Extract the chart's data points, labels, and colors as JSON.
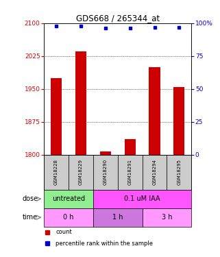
{
  "title": "GDS668 / 265344_at",
  "samples": [
    "GSM18228",
    "GSM18229",
    "GSM18290",
    "GSM18291",
    "GSM18294",
    "GSM18295"
  ],
  "bar_values": [
    1975,
    2035,
    1807,
    1835,
    2000,
    1955
  ],
  "dot_values": [
    98,
    98,
    96,
    96,
    97,
    97
  ],
  "ylim_left": [
    1800,
    2100
  ],
  "ylim_right": [
    0,
    100
  ],
  "yticks_left": [
    1800,
    1875,
    1950,
    2025,
    2100
  ],
  "yticks_right": [
    0,
    25,
    50,
    75,
    100
  ],
  "bar_color": "#cc0000",
  "dot_color": "#0000cc",
  "bar_width": 0.45,
  "dose_labels": [
    {
      "text": "untreated",
      "span": [
        0,
        2
      ],
      "color": "#90ee90"
    },
    {
      "text": "0.1 uM IAA",
      "span": [
        2,
        6
      ],
      "color": "#ff55ff"
    }
  ],
  "time_labels": [
    {
      "text": "0 h",
      "span": [
        0,
        2
      ],
      "color": "#ff99ff"
    },
    {
      "text": "1 h",
      "span": [
        2,
        4
      ],
      "color": "#cc77dd"
    },
    {
      "text": "3 h",
      "span": [
        4,
        6
      ],
      "color": "#ff99ff"
    }
  ],
  "dose_arrow_label": "dose",
  "time_arrow_label": "time",
  "legend_items": [
    {
      "label": "count",
      "color": "#cc0000"
    },
    {
      "label": "percentile rank within the sample",
      "color": "#0000cc"
    }
  ],
  "grid_color": "#000000",
  "sample_bg_color": "#cccccc",
  "left_tick_color": "#cc0000",
  "right_tick_color": "#0000cc"
}
